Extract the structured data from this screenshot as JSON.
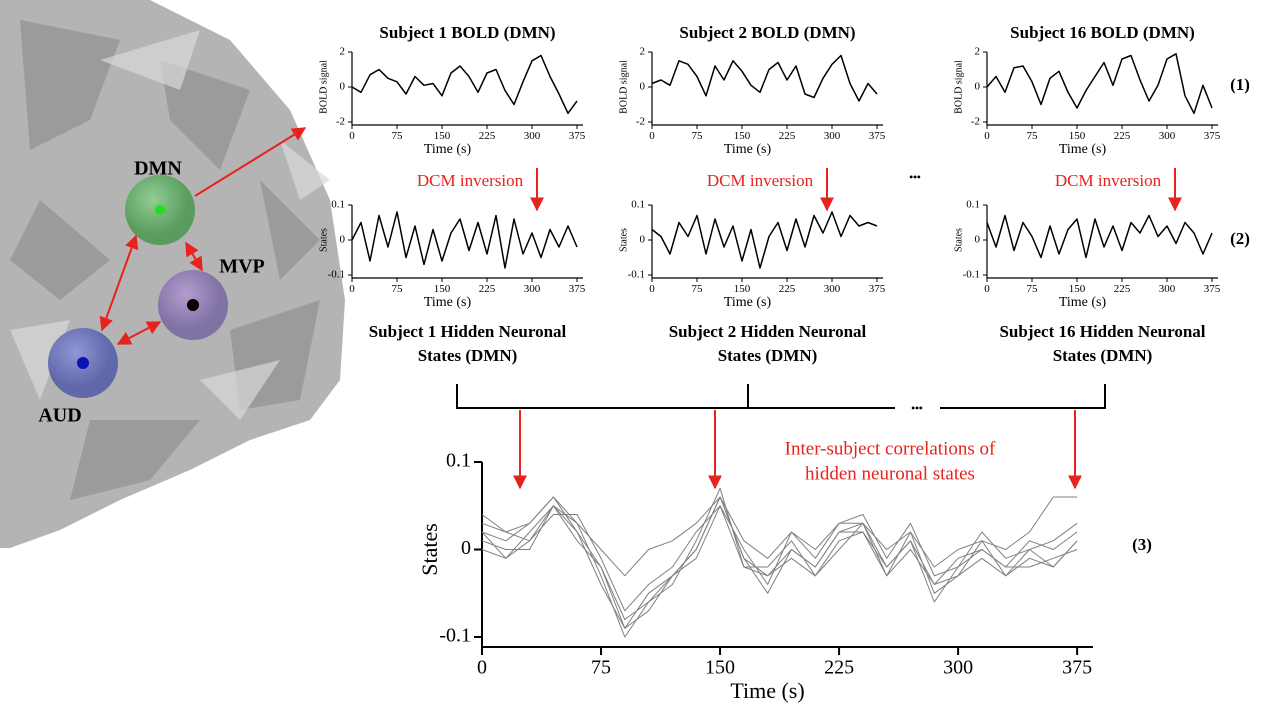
{
  "brain": {
    "nodes": [
      "DMN",
      "MVP",
      "AUD"
    ]
  },
  "labels": {
    "arrow_text": [
      "DCM inversion",
      "DCM inversion",
      "DCM inversion"
    ],
    "ellipsis": [
      "•••",
      "•••"
    ],
    "rows": [
      "(1)",
      "(2)",
      "(3)"
    ],
    "annotation": [
      "Inter-subject correlations of",
      "hidden neuronal states"
    ]
  },
  "chart_data": [
    {
      "type": "line",
      "title": "Subject 1 BOLD (DMN)",
      "xlabel": "Time (s)",
      "ylabel": "BOLD signal",
      "x": [
        0,
        15,
        30,
        45,
        60,
        75,
        90,
        105,
        120,
        135,
        150,
        165,
        180,
        195,
        210,
        225,
        240,
        255,
        270,
        285,
        300,
        315,
        330,
        345,
        360,
        375
      ],
      "series": [
        {
          "color": "#000000",
          "values": [
            0,
            -0.3,
            0.7,
            1.0,
            0.5,
            0.3,
            -0.4,
            0.6,
            0.1,
            0.2,
            -0.5,
            0.8,
            1.2,
            0.6,
            -0.3,
            0.8,
            1.0,
            -0.2,
            -1.0,
            0.3,
            1.5,
            1.8,
            0.6,
            -0.4,
            -1.5,
            -0.8
          ]
        }
      ],
      "xlim": [
        0,
        385
      ],
      "ylim": [
        -2,
        2
      ],
      "xticks": [
        0,
        75,
        150,
        225,
        300,
        375
      ],
      "yticks": [
        -2,
        0,
        2
      ]
    },
    {
      "type": "line",
      "title": "Subject 2 BOLD (DMN)",
      "xlabel": "Time (s)",
      "ylabel": "BOLD signal",
      "x": [
        0,
        15,
        30,
        45,
        60,
        75,
        90,
        105,
        120,
        135,
        150,
        165,
        180,
        195,
        210,
        225,
        240,
        255,
        270,
        285,
        300,
        315,
        330,
        345,
        360,
        375
      ],
      "series": [
        {
          "color": "#000000",
          "values": [
            0.2,
            0.4,
            0.1,
            1.5,
            1.3,
            0.6,
            -0.5,
            1.2,
            0.4,
            1.5,
            0.9,
            0.1,
            -0.3,
            1.0,
            1.4,
            0.4,
            1.2,
            -0.4,
            -0.6,
            0.5,
            1.3,
            1.8,
            0.2,
            -0.8,
            0.2,
            -0.4
          ]
        }
      ],
      "xlim": [
        0,
        385
      ],
      "ylim": [
        -2,
        2
      ],
      "xticks": [
        0,
        75,
        150,
        225,
        300,
        375
      ],
      "yticks": [
        -2,
        0,
        2
      ]
    },
    {
      "type": "line",
      "title": "Subject 16 BOLD (DMN)",
      "xlabel": "Time (s)",
      "ylabel": "BOLD signal",
      "x": [
        0,
        15,
        30,
        45,
        60,
        75,
        90,
        105,
        120,
        135,
        150,
        165,
        180,
        195,
        210,
        225,
        240,
        255,
        270,
        285,
        300,
        315,
        330,
        345,
        360,
        375
      ],
      "series": [
        {
          "color": "#000000",
          "values": [
            0,
            0.6,
            -0.3,
            1.1,
            1.2,
            0.3,
            -1.0,
            0.5,
            0.9,
            -0.3,
            -1.2,
            -0.2,
            0.6,
            1.4,
            0.1,
            1.6,
            1.8,
            0.4,
            -0.8,
            0.1,
            1.6,
            1.9,
            -0.5,
            -1.5,
            0.1,
            -1.2
          ]
        }
      ],
      "xlim": [
        0,
        385
      ],
      "ylim": [
        -2,
        2
      ],
      "xticks": [
        0,
        75,
        150,
        225,
        300,
        375
      ],
      "yticks": [
        -2,
        0,
        2
      ]
    },
    {
      "type": "line",
      "title": "Subject 1 Hidden Neuronal States (DMN)",
      "xlabel": "Time (s)",
      "ylabel": "States",
      "x": [
        0,
        15,
        30,
        45,
        60,
        75,
        90,
        105,
        120,
        135,
        150,
        165,
        180,
        195,
        210,
        225,
        240,
        255,
        270,
        285,
        300,
        315,
        330,
        345,
        360,
        375
      ],
      "series": [
        {
          "color": "#000000",
          "values": [
            0,
            0.05,
            -0.06,
            0.07,
            -0.02,
            0.08,
            -0.05,
            0.04,
            -0.07,
            0.03,
            -0.06,
            0.02,
            0.06,
            -0.03,
            0.05,
            -0.04,
            0.07,
            -0.08,
            0.06,
            -0.04,
            0.02,
            -0.05,
            0.03,
            -0.02,
            0.04,
            -0.02
          ]
        }
      ],
      "xlim": [
        0,
        385
      ],
      "ylim": [
        -0.1,
        0.1
      ],
      "xticks": [
        0,
        75,
        150,
        225,
        300,
        375
      ],
      "yticks": [
        -0.1,
        0,
        0.1
      ]
    },
    {
      "type": "line",
      "title": "Subject 2 Hidden Neuronal States (DMN)",
      "xlabel": "Time (s)",
      "ylabel": "States",
      "x": [
        0,
        15,
        30,
        45,
        60,
        75,
        90,
        105,
        120,
        135,
        150,
        165,
        180,
        195,
        210,
        225,
        240,
        255,
        270,
        285,
        300,
        315,
        330,
        345,
        360,
        375
      ],
      "series": [
        {
          "color": "#000000",
          "values": [
            0.03,
            0.01,
            -0.04,
            0.05,
            0.01,
            0.07,
            -0.04,
            0.06,
            -0.02,
            0.04,
            -0.06,
            0.03,
            -0.08,
            0.01,
            0.05,
            -0.03,
            0.06,
            -0.02,
            0.07,
            0.02,
            0.08,
            0.01,
            0.07,
            0.04,
            0.05,
            0.04
          ]
        }
      ],
      "xlim": [
        0,
        385
      ],
      "ylim": [
        -0.1,
        0.1
      ],
      "xticks": [
        0,
        75,
        150,
        225,
        300,
        375
      ],
      "yticks": [
        -0.1,
        0,
        0.1
      ]
    },
    {
      "type": "line",
      "title": "Subject 16 Hidden Neuronal States (DMN)",
      "xlabel": "Time (s)",
      "ylabel": "States",
      "x": [
        0,
        15,
        30,
        45,
        60,
        75,
        90,
        105,
        120,
        135,
        150,
        165,
        180,
        195,
        210,
        225,
        240,
        255,
        270,
        285,
        300,
        315,
        330,
        345,
        360,
        375
      ],
      "series": [
        {
          "color": "#000000",
          "values": [
            0.05,
            -0.02,
            0.07,
            -0.03,
            0.05,
            0.01,
            -0.05,
            0.04,
            -0.04,
            0.03,
            0.06,
            -0.05,
            0.06,
            -0.02,
            0.04,
            -0.03,
            0.05,
            0.02,
            0.07,
            0.01,
            0.04,
            -0.01,
            0.05,
            0.02,
            -0.04,
            0.02
          ]
        }
      ],
      "xlim": [
        0,
        385
      ],
      "ylim": [
        -0.1,
        0.1
      ],
      "xticks": [
        0,
        75,
        150,
        225,
        300,
        375
      ],
      "yticks": [
        -0.1,
        0,
        0.1
      ]
    },
    {
      "type": "line",
      "xlabel": "Time (s)",
      "ylabel": "States",
      "x": [
        0,
        15,
        30,
        45,
        60,
        75,
        90,
        105,
        120,
        135,
        150,
        165,
        180,
        195,
        210,
        225,
        240,
        255,
        270,
        285,
        300,
        315,
        330,
        345,
        360,
        375
      ],
      "series": [
        {
          "color": "#808080",
          "values": [
            0.02,
            0.01,
            0.03,
            0.06,
            0.02,
            -0.02,
            -0.09,
            -0.05,
            -0.03,
            0.0,
            0.06,
            -0.01,
            -0.03,
            0.0,
            -0.02,
            0.02,
            0.03,
            -0.02,
            0.01,
            -0.04,
            -0.01,
            0.0,
            -0.02,
            0.01,
            0.0,
            0.02
          ]
        },
        {
          "color": "#808080",
          "values": [
            0.0,
            -0.01,
            0.02,
            0.05,
            0.03,
            -0.03,
            -0.1,
            -0.06,
            -0.04,
            0.01,
            0.07,
            -0.02,
            -0.02,
            0.01,
            -0.03,
            0.01,
            0.02,
            -0.03,
            0.02,
            -0.05,
            -0.03,
            0.01,
            -0.03,
            -0.01,
            -0.02,
            0.01
          ]
        },
        {
          "color": "#808080",
          "values": [
            0.03,
            0.02,
            0.01,
            0.04,
            0.04,
            -0.01,
            -0.07,
            -0.04,
            -0.02,
            0.02,
            0.05,
            0.0,
            -0.04,
            0.02,
            -0.01,
            0.03,
            0.04,
            -0.01,
            0.03,
            -0.03,
            -0.02,
            0.02,
            -0.01,
            0.0,
            0.01,
            0.03
          ]
        },
        {
          "color": "#808080",
          "values": [
            0.01,
            0.0,
            0.0,
            0.05,
            0.01,
            -0.02,
            -0.08,
            -0.06,
            -0.03,
            0.0,
            0.06,
            -0.01,
            -0.05,
            0.0,
            -0.02,
            0.02,
            0.02,
            -0.02,
            0.01,
            -0.06,
            -0.02,
            0.0,
            -0.02,
            -0.02,
            -0.01,
            0.0
          ]
        },
        {
          "color": "#808080",
          "values": [
            0.04,
            0.02,
            0.03,
            0.06,
            0.03,
            0.0,
            -0.03,
            0.0,
            0.01,
            0.03,
            0.06,
            0.01,
            -0.01,
            0.02,
            0.0,
            0.03,
            0.03,
            0.0,
            0.02,
            -0.02,
            0.0,
            0.01,
            0.0,
            0.02,
            0.06,
            0.06
          ]
        },
        {
          "color": "#808080",
          "values": [
            0.02,
            -0.01,
            0.01,
            0.05,
            0.02,
            -0.04,
            -0.09,
            -0.07,
            -0.03,
            -0.01,
            0.05,
            -0.02,
            -0.03,
            -0.01,
            -0.03,
            0.0,
            0.03,
            -0.03,
            0.0,
            -0.04,
            -0.03,
            -0.01,
            -0.03,
            0.0,
            -0.02,
            0.01
          ]
        }
      ],
      "xlim": [
        0,
        385
      ],
      "ylim": [
        -0.1,
        0.1
      ],
      "xticks": [
        0,
        75,
        150,
        225,
        300,
        375
      ],
      "yticks": [
        -0.1,
        0,
        0.1
      ]
    }
  ]
}
